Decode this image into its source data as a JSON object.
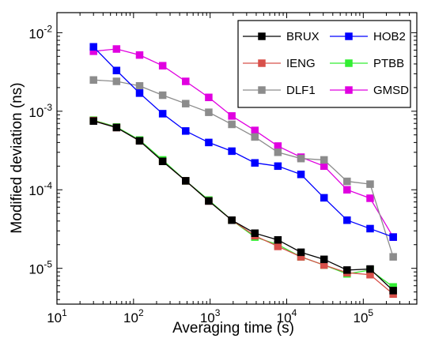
{
  "chart_data": {
    "type": "line",
    "xlabel": "Averaging time (s)",
    "ylabel": "Modified deviation (ns)",
    "x_scale": "log",
    "y_scale": "log",
    "xlim": [
      10,
      500000
    ],
    "ylim": [
      3.5e-06,
      0.018
    ],
    "x_ticks": [
      {
        "value": 10,
        "base": "10",
        "exp": "1"
      },
      {
        "value": 100,
        "base": "10",
        "exp": "2"
      },
      {
        "value": 1000,
        "base": "10",
        "exp": "3"
      },
      {
        "value": 10000,
        "base": "10",
        "exp": "4"
      },
      {
        "value": 100000,
        "base": "10",
        "exp": "5"
      }
    ],
    "y_ticks": [
      {
        "value": 1e-05,
        "base": "10",
        "exp": "-5"
      },
      {
        "value": 0.0001,
        "base": "10",
        "exp": "-4"
      },
      {
        "value": 0.001,
        "base": "10",
        "exp": "-3"
      },
      {
        "value": 0.01,
        "base": "10",
        "exp": "-2"
      }
    ],
    "grid": false,
    "legend_position": "top-right",
    "x": [
      30,
      60,
      120,
      240,
      480,
      960,
      1920,
      3840,
      7680,
      15360,
      30720,
      61440,
      122880,
      245760
    ],
    "series": [
      {
        "name": "BRUX",
        "color": "#000000",
        "marker_color": "#000000",
        "values": [
          0.00075,
          0.00062,
          0.00042,
          0.00023,
          0.00013,
          7.2e-05,
          4.1e-05,
          2.8e-05,
          2.3e-05,
          1.6e-05,
          1.3e-05,
          9.5e-06,
          9.8e-06,
          5.2e-06
        ]
      },
      {
        "name": "HOB2",
        "color": "#0000ff",
        "marker_color": "#0000ff",
        "values": [
          0.0066,
          0.0033,
          0.0017,
          0.00093,
          0.00056,
          0.0004,
          0.00031,
          0.00022,
          0.0002,
          0.000157,
          7.9e-05,
          4.1e-05,
          3.2e-05,
          2.5e-05
        ]
      },
      {
        "name": "IENG",
        "color": "#d8504a",
        "marker_color": "#d8504a",
        "values": [
          0.00076,
          0.00062,
          0.00042,
          0.00023,
          0.00013,
          7.2e-05,
          4.1e-05,
          2.6e-05,
          1.9e-05,
          1.4e-05,
          1.1e-05,
          8.8e-06,
          8.3e-06,
          4.7e-06
        ]
      },
      {
        "name": "PTBB",
        "color": "#33ee33",
        "marker_color": "#33ee33",
        "values": [
          0.00077,
          0.00063,
          0.00043,
          0.00024,
          0.00013,
          7.4e-05,
          4.1e-05,
          2.5e-05,
          2e-05,
          1.4e-05,
          1.1e-05,
          8.5e-06,
          9.5e-06,
          5.8e-06
        ]
      },
      {
        "name": "DLF1",
        "color": "#8c8c8c",
        "marker_color": "#8c8c8c",
        "values": [
          0.0025,
          0.0024,
          0.0021,
          0.0016,
          0.00125,
          0.00097,
          0.00068,
          0.00047,
          0.0003,
          0.00025,
          0.00024,
          0.000128,
          0.000118,
          1.4e-05
        ]
      },
      {
        "name": "GMSD",
        "color": "#e000e0",
        "marker_color": "#e000e0",
        "values": [
          0.0058,
          0.0062,
          0.0052,
          0.0038,
          0.0024,
          0.0015,
          0.00087,
          0.00057,
          0.00036,
          0.00026,
          0.0002,
          0.0001,
          7.8e-05,
          2.5e-05
        ]
      }
    ],
    "legend_order": [
      "BRUX",
      "HOB2",
      "IENG",
      "PTBB",
      "DLF1",
      "GMSD"
    ]
  }
}
